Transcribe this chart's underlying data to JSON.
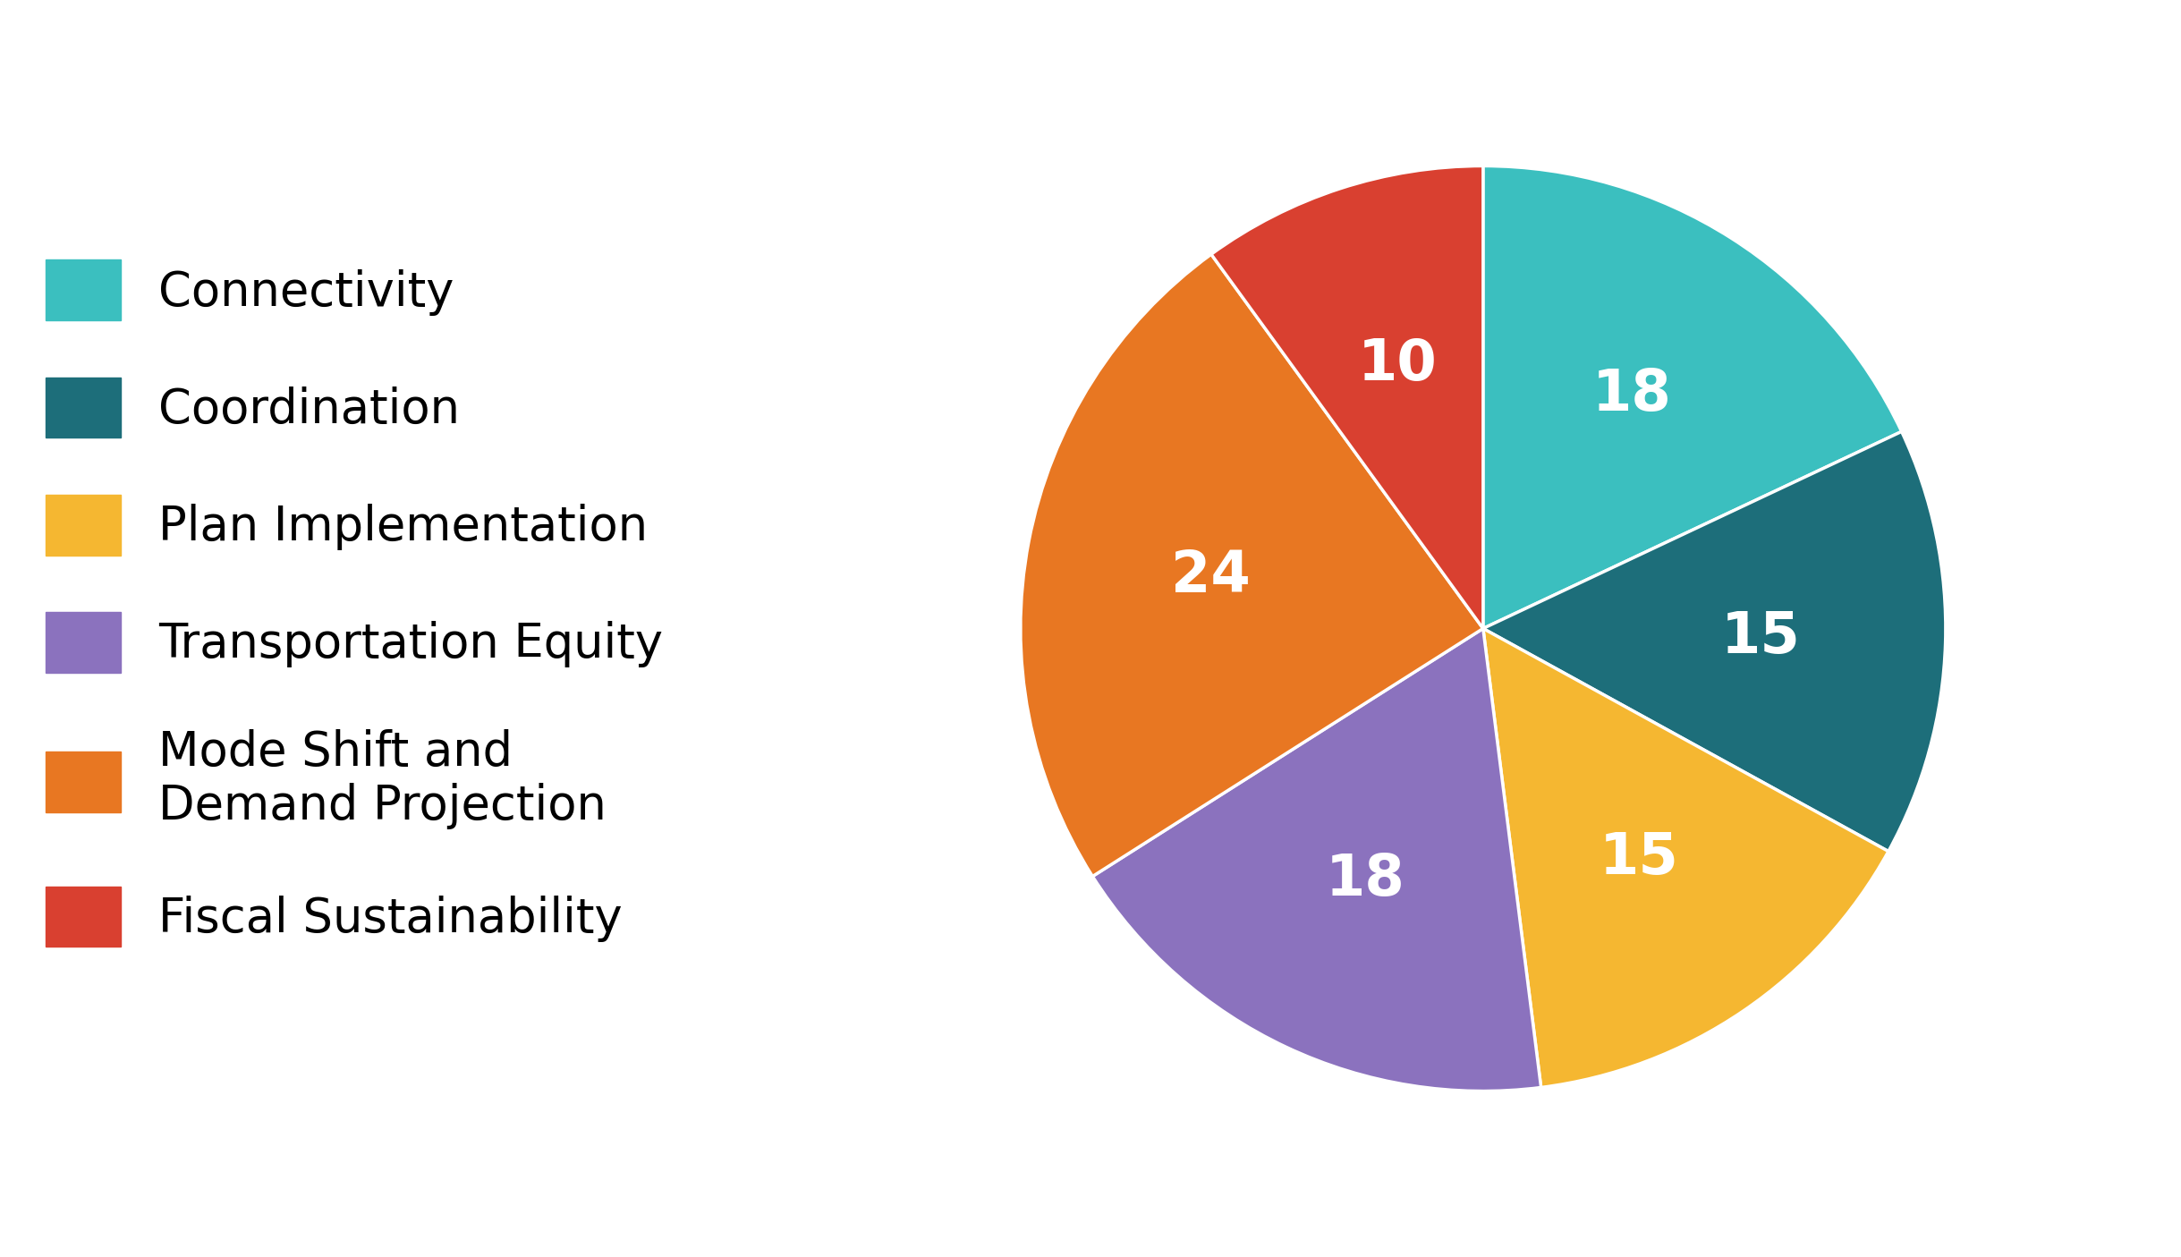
{
  "labels": [
    "Connectivity",
    "Coordination",
    "Plan Implementation",
    "Transportation Equity",
    "Mode Shift and\nDemand Projection",
    "Fiscal Sustainability"
  ],
  "legend_labels": [
    "Connectivity",
    "Coordination",
    "Plan Implementation",
    "Transportation Equity",
    "Mode Shift and\nDemand Projection",
    "Fiscal Sustainability"
  ],
  "values": [
    18,
    15,
    15,
    18,
    24,
    10
  ],
  "colors": [
    "#3bbfbf",
    "#1d6e7a",
    "#f5b731",
    "#8b72be",
    "#e87722",
    "#d94030"
  ],
  "text_labels": [
    "18",
    "15",
    "15",
    "18",
    "24",
    "10"
  ],
  "text_color": "#ffffff",
  "background_color": "#ffffff",
  "startangle": 90,
  "label_fontsize": 46,
  "legend_fontsize": 38
}
